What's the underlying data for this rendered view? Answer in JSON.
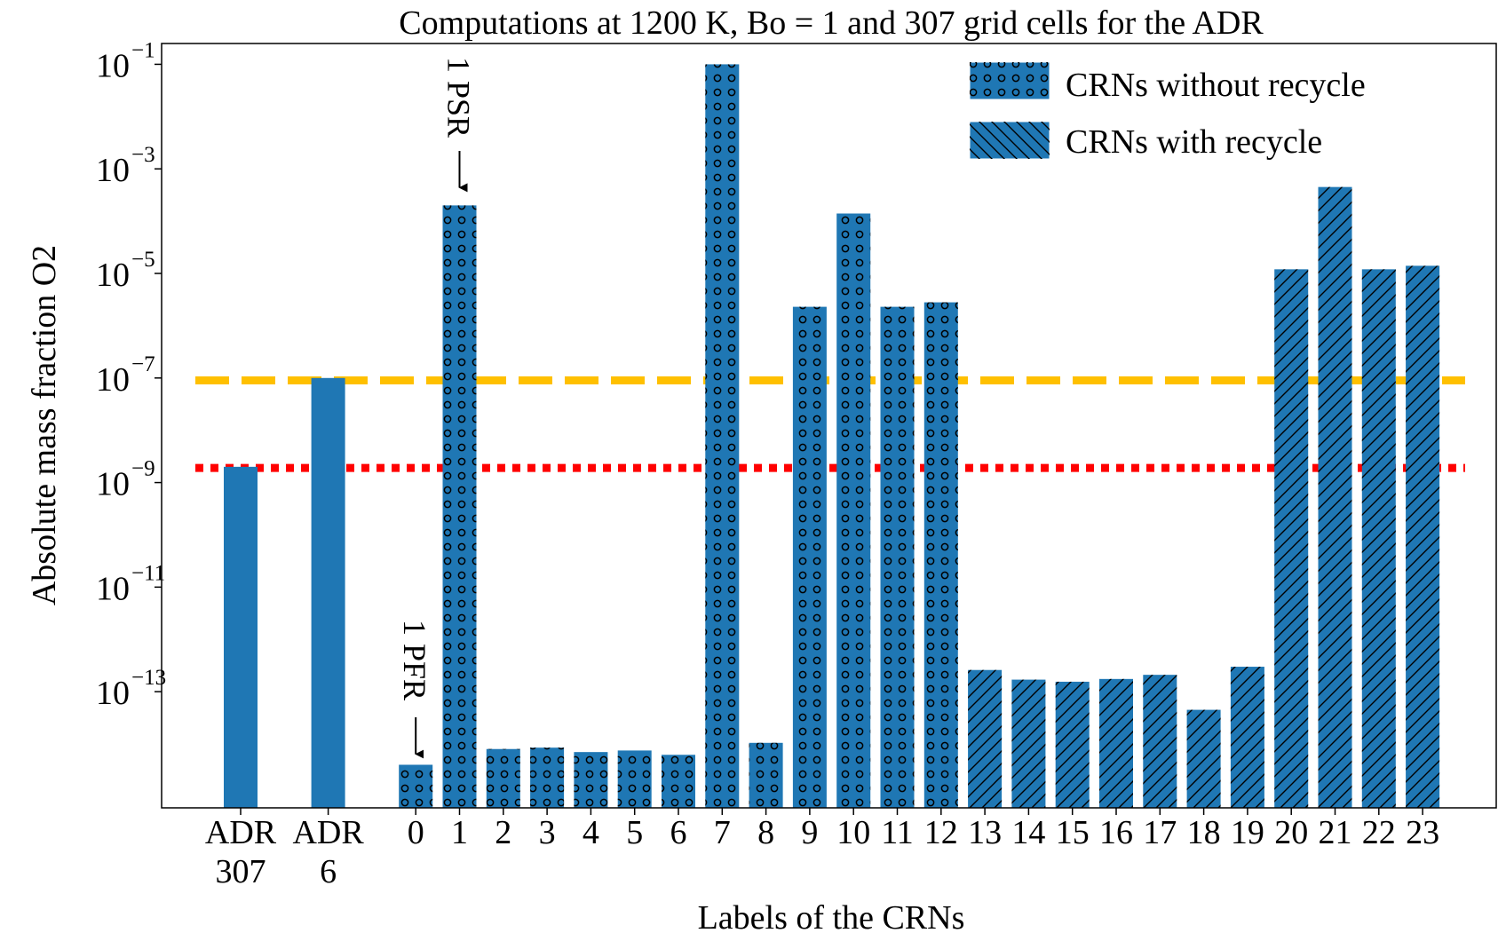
{
  "chart_data": {
    "type": "bar",
    "title": "Computations at 1200 K, Bo = 1 and 307 grid cells for the ADR",
    "xlabel": "Labels of the CRNs",
    "ylabel": "Absolute mass fraction O2",
    "yscale": "log",
    "ylim": [
      6e-16,
      0.25
    ],
    "yticks": [
      {
        "value": 0.1,
        "base": "10",
        "exp": "−1"
      },
      {
        "value": 0.001,
        "base": "10",
        "exp": "−3"
      },
      {
        "value": 1e-05,
        "base": "10",
        "exp": "−5"
      },
      {
        "value": 1e-07,
        "base": "10",
        "exp": "−7"
      },
      {
        "value": 1e-09,
        "base": "10",
        "exp": "−9"
      },
      {
        "value": 1e-11,
        "base": "10",
        "exp": "−11"
      },
      {
        "value": 1e-13,
        "base": "10",
        "exp": "−13"
      }
    ],
    "bars": [
      {
        "lines": [
          "ADR",
          "307"
        ],
        "slot": 0,
        "value": 2e-09,
        "group": "adr"
      },
      {
        "lines": [
          "ADR",
          "6"
        ],
        "slot": 2,
        "value": 1e-07,
        "group": "adr"
      },
      {
        "lines": [
          "0"
        ],
        "slot": 4,
        "value": 4e-15,
        "group": "without"
      },
      {
        "lines": [
          "1"
        ],
        "slot": 5,
        "value": 0.0002,
        "group": "without"
      },
      {
        "lines": [
          "2"
        ],
        "slot": 6,
        "value": 8e-15,
        "group": "without"
      },
      {
        "lines": [
          "3"
        ],
        "slot": 7,
        "value": 8.5e-15,
        "group": "without"
      },
      {
        "lines": [
          "4"
        ],
        "slot": 8,
        "value": 7e-15,
        "group": "without"
      },
      {
        "lines": [
          "5"
        ],
        "slot": 9,
        "value": 7.5e-15,
        "group": "without"
      },
      {
        "lines": [
          "6"
        ],
        "slot": 10,
        "value": 6.2e-15,
        "group": "without"
      },
      {
        "lines": [
          "7"
        ],
        "slot": 11,
        "value": 0.1,
        "group": "without"
      },
      {
        "lines": [
          "8"
        ],
        "slot": 12,
        "value": 1.05e-14,
        "group": "without"
      },
      {
        "lines": [
          "9"
        ],
        "slot": 13,
        "value": 2.3e-06,
        "group": "without"
      },
      {
        "lines": [
          "10"
        ],
        "slot": 14,
        "value": 0.00014,
        "group": "without"
      },
      {
        "lines": [
          "11"
        ],
        "slot": 15,
        "value": 2.3e-06,
        "group": "without"
      },
      {
        "lines": [
          "12"
        ],
        "slot": 16,
        "value": 2.8e-06,
        "group": "without"
      },
      {
        "lines": [
          "13"
        ],
        "slot": 17,
        "value": 2.6e-13,
        "group": "with"
      },
      {
        "lines": [
          "14"
        ],
        "slot": 18,
        "value": 1.7e-13,
        "group": "with"
      },
      {
        "lines": [
          "15"
        ],
        "slot": 19,
        "value": 1.55e-13,
        "group": "with"
      },
      {
        "lines": [
          "16"
        ],
        "slot": 20,
        "value": 1.75e-13,
        "group": "with"
      },
      {
        "lines": [
          "17"
        ],
        "slot": 21,
        "value": 2.1e-13,
        "group": "with"
      },
      {
        "lines": [
          "18"
        ],
        "slot": 22,
        "value": 4.5e-14,
        "group": "with"
      },
      {
        "lines": [
          "19"
        ],
        "slot": 23,
        "value": 3e-13,
        "group": "with"
      },
      {
        "lines": [
          "20"
        ],
        "slot": 24,
        "value": 1.2e-05,
        "group": "with"
      },
      {
        "lines": [
          "21"
        ],
        "slot": 25,
        "value": 0.00045,
        "group": "with"
      },
      {
        "lines": [
          "22"
        ],
        "slot": 26,
        "value": 1.2e-05,
        "group": "with"
      },
      {
        "lines": [
          "23"
        ],
        "slot": 27,
        "value": 1.4e-05,
        "group": "with"
      }
    ],
    "reference_lines": [
      {
        "name": "yellow-dashed",
        "value": 9e-08,
        "color": "#FFC000",
        "style": "dashed"
      },
      {
        "name": "red-dotted",
        "value": 1.9e-09,
        "color": "#FF0000",
        "style": "dotted"
      }
    ],
    "legend": {
      "placement": "top-right",
      "entries": [
        {
          "label": "CRNs without recycle",
          "pattern": "circles"
        },
        {
          "label": "CRNs with recycle",
          "pattern": "hatch"
        }
      ]
    },
    "annotations": [
      {
        "text": "1 PSR",
        "target_slot": 5
      },
      {
        "text": "1 PFR",
        "target_slot": 4
      }
    ],
    "colors": {
      "bar": "#1F77B4",
      "hatch": "#000000"
    }
  }
}
